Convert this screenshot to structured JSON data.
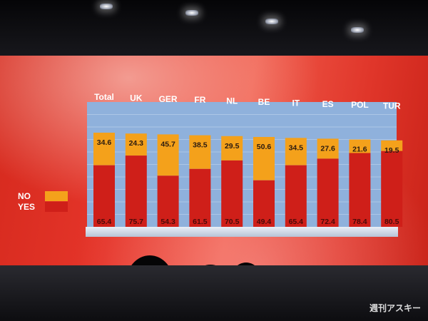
{
  "chart_data": {
    "type": "bar",
    "stacked": true,
    "categories": [
      "Total",
      "UK",
      "GER",
      "FR",
      "NL",
      "BE",
      "IT",
      "ES",
      "POL",
      "TUR"
    ],
    "series": [
      {
        "name": "YES",
        "values": [
          65.4,
          75.7,
          54.3,
          61.5,
          70.5,
          49.4,
          65.4,
          72.4,
          78.4,
          80.5
        ]
      },
      {
        "name": "NO",
        "values": [
          34.6,
          24.3,
          45.7,
          38.5,
          29.5,
          50.6,
          34.5,
          27.6,
          21.6,
          19.5
        ]
      }
    ],
    "legend": {
      "position": "left",
      "items": [
        "NO",
        "YES"
      ]
    },
    "ylim": [
      0,
      100
    ],
    "grid": true
  },
  "colors": {
    "yes": "#cf1f19",
    "no": "#f4a11b",
    "plot_bg": "#8fb1dc",
    "grid": "#c8d8ee"
  },
  "watermark": "週刊アスキー"
}
